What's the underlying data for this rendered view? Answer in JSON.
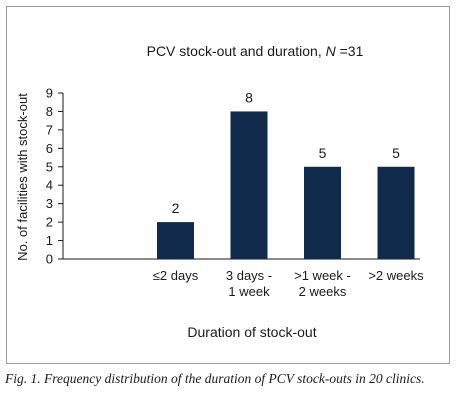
{
  "chart_data": {
    "type": "bar",
    "title": "PCV stock-out and duration, N =31",
    "title_parts": {
      "prefix": "PCV stock-out and duration, ",
      "italic": "N",
      "suffix": " =31"
    },
    "xlabel": "Duration of stock-out",
    "ylabel": "No. of facilities with stock-out",
    "categories": [
      "≤2 days",
      "3 days - 1 week",
      ">1 week - 2 weeks",
      ">2 weeks"
    ],
    "category_lines": [
      [
        "≤2 days"
      ],
      [
        "3 days -",
        "1 week"
      ],
      [
        ">1 week -",
        "2 weeks"
      ],
      [
        ">2 weeks"
      ]
    ],
    "values": [
      2,
      8,
      5,
      5
    ],
    "data_labels": [
      "2",
      "8",
      "5",
      "5"
    ],
    "ylim": [
      0,
      9
    ],
    "yticks": [
      0,
      1,
      2,
      3,
      4,
      5,
      6,
      7,
      8,
      9
    ],
    "bar_color": "#0f2a4a",
    "grid": false,
    "legend": "none"
  },
  "caption": "Fig. 1. Frequency distribution of the duration of PCV stock-outs in 20 clinics."
}
